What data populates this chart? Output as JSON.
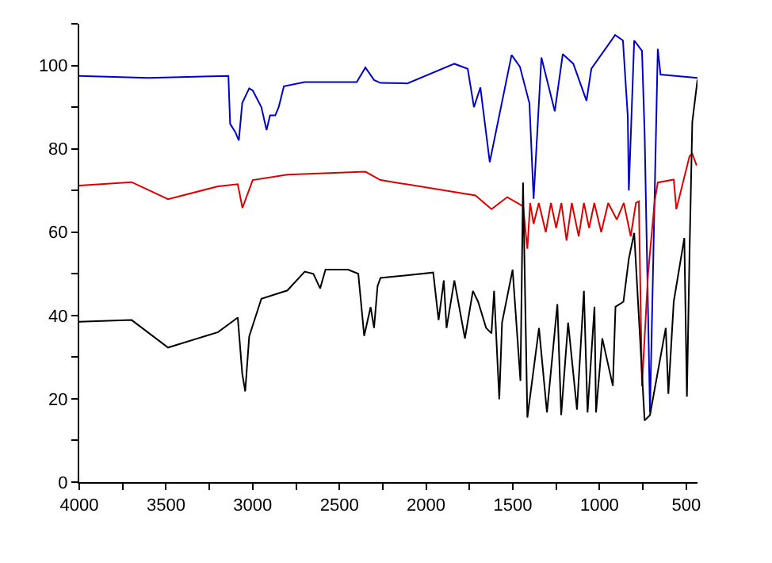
{
  "chart_data": {
    "type": "line",
    "xlim": [
      4000,
      435
    ],
    "ylim": [
      0,
      110
    ],
    "xticks": [
      4000,
      {
        "value": 3750,
        "label": null
      },
      3500,
      {
        "value": 3250,
        "label": null
      },
      3000,
      {
        "value": 2750,
        "label": null
      },
      2500,
      {
        "value": 2250,
        "label": null
      },
      2000,
      {
        "value": 1750,
        "label": null
      },
      1500,
      {
        "value": 1250,
        "label": null
      },
      1000,
      {
        "value": 750,
        "label": null
      },
      500
    ],
    "yticks": [
      0,
      {
        "value": 10,
        "label": null
      },
      20,
      {
        "value": 30,
        "label": null
      },
      40,
      {
        "value": 50,
        "label": null
      },
      60,
      {
        "value": 70,
        "label": null
      },
      80,
      {
        "value": 90,
        "label": null
      },
      100,
      {
        "value": 110,
        "label": null
      }
    ],
    "marker": "none",
    "line_style": "solid",
    "series": [
      {
        "color": "#0000cc",
        "x": [
          4000,
          3600,
          3140,
          3130,
          3100,
          3080,
          3060,
          3020,
          3000,
          2950,
          2920,
          2900,
          2870,
          2850,
          2820,
          2700,
          2400,
          2350,
          2300,
          2263,
          2108,
          1837,
          1760,
          1724,
          1687,
          1633,
          1507,
          1459,
          1404,
          1380,
          1335,
          1258,
          1212,
          1151,
          1075,
          1047,
          910,
          865,
          837,
          831,
          800,
          755,
          740,
          709,
          664,
          648,
          435
        ],
        "values": [
          97.5,
          97,
          97.5,
          86,
          84,
          82,
          91,
          94.5,
          94,
          90,
          84.5,
          88,
          88,
          90,
          95,
          96,
          96,
          99.5,
          96.5,
          95.8,
          95.7,
          100.4,
          99.2,
          90,
          94.7,
          76.8,
          102.5,
          99.7,
          90.9,
          68,
          101.9,
          89,
          102.7,
          100.4,
          91.5,
          99.2,
          107.3,
          106,
          87.8,
          70,
          106,
          103.5,
          84,
          16.7,
          104,
          97.8,
          97
        ]
      },
      {
        "color": "#dd0000",
        "x": [
          4000,
          3698,
          3488,
          3200,
          3086,
          3059,
          3000,
          2800,
          2350,
          2263,
          1715,
          1623,
          1532,
          1441,
          1416,
          1400,
          1380,
          1350,
          1310,
          1280,
          1250,
          1220,
          1190,
          1160,
          1120,
          1090,
          1060,
          1030,
          990,
          950,
          900,
          860,
          820,
          790,
          773,
          755,
          720,
          682,
          664,
          572,
          557,
          481,
          465,
          440
        ],
        "values": [
          71.2,
          72,
          67.9,
          71,
          71.5,
          65.8,
          72.5,
          73.8,
          74.5,
          72.5,
          68.8,
          65.5,
          68.4,
          66.2,
          56,
          67,
          62,
          67,
          60,
          67,
          61,
          67,
          58,
          67,
          59,
          67,
          61,
          67,
          60,
          67,
          63,
          67,
          59,
          67,
          67.4,
          23,
          50,
          67.4,
          71.9,
          72.6,
          65.5,
          78.2,
          78.8,
          76
        ]
      },
      {
        "color": "#000000",
        "x": [
          4000,
          3698,
          3488,
          3200,
          3086,
          3060,
          3043,
          3020,
          2950,
          2800,
          2700,
          2650,
          2611,
          2580,
          2450,
          2391,
          2357,
          2320,
          2300,
          2280,
          2263,
          1959,
          1928,
          1898,
          1882,
          1837,
          1776,
          1730,
          1700,
          1654,
          1623,
          1608,
          1578,
          1562,
          1501,
          1456,
          1441,
          1416,
          1349,
          1303,
          1243,
          1221,
          1181,
          1130,
          1090,
          1069,
          1029,
          1020,
          984,
          923,
          908,
          862,
          831,
          800,
          740,
          709,
          618,
          603,
          572,
          511,
          496,
          481,
          465,
          435
        ],
        "values": [
          38.5,
          38.9,
          32.3,
          36,
          39.5,
          26,
          21.8,
          35,
          44,
          46,
          50.5,
          50,
          46.5,
          51,
          51,
          50,
          35.1,
          42,
          37,
          47,
          49,
          50.3,
          38.9,
          48.4,
          37,
          48.4,
          34.5,
          45.9,
          43.3,
          37,
          35.7,
          45.9,
          19.9,
          38.3,
          51,
          24.3,
          71.9,
          15.5,
          37,
          16.7,
          42.7,
          16.1,
          38.3,
          17.4,
          45.9,
          16.7,
          42.1,
          16.7,
          34.5,
          23.1,
          42.1,
          43.3,
          53.6,
          59.8,
          14.8,
          16.1,
          37,
          21.2,
          43.3,
          58.6,
          20.5,
          54.8,
          86.4,
          96.6
        ]
      }
    ]
  }
}
